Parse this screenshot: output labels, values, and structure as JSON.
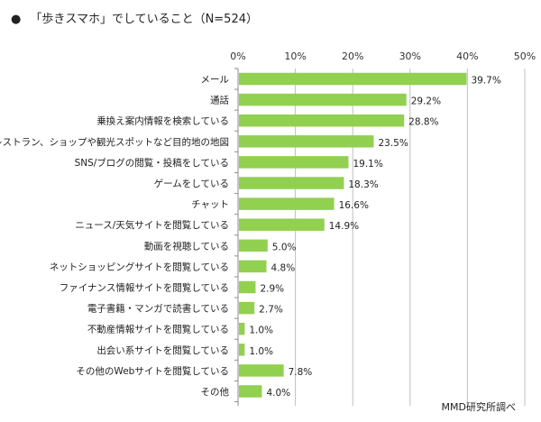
{
  "title": "「歩きスマホ」でしていること（N=524）",
  "bullet": "●",
  "source": "MMD研究所調べ",
  "chart_data": {
    "type": "bar",
    "orientation": "horizontal",
    "title": "「歩きスマホ」でしていること（N=524）",
    "categories": [
      "メール",
      "通話",
      "乗換え案内情報を検索している",
      "レストラン、ショップや観光スポットなど目的地の地図",
      "SNS/ブログの閲覧・投稿をしている",
      "ゲームをしている",
      "チャット",
      "ニュース/天気サイトを閲覧している",
      "動画を視聴している",
      "ネットショッピングサイトを閲覧している",
      "ファイナンス情報サイトを閲覧している",
      "電子書籍・マンガで読書している",
      "不動産情報サイトを閲覧している",
      "出会い系サイトを閲覧している",
      "その他のWebサイトを閲覧している",
      "その他"
    ],
    "values": [
      39.7,
      29.2,
      28.8,
      23.5,
      19.1,
      18.3,
      16.6,
      14.9,
      5.0,
      4.8,
      2.9,
      2.7,
      1.0,
      1.0,
      7.8,
      4.0
    ],
    "value_labels": [
      "39.7%",
      "29.2%",
      "28.8%",
      "23.5%",
      "19.1%",
      "18.3%",
      "16.6%",
      "14.9%",
      "5.0%",
      "4.8%",
      "2.9%",
      "2.7%",
      "1.0%",
      "1.0%",
      "7.8%",
      "4.0%"
    ],
    "xlim": [
      0,
      50
    ],
    "xticks": [
      "0%",
      "10%",
      "20%",
      "30%",
      "40%",
      "50%"
    ],
    "grid": true,
    "color": "#92d050"
  }
}
